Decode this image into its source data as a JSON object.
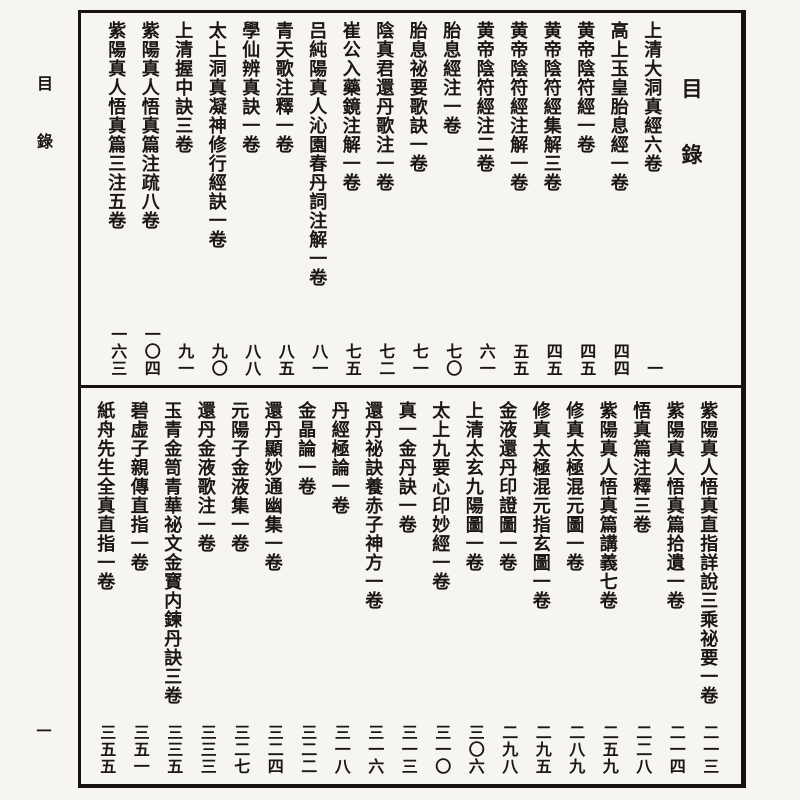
{
  "colors": {
    "ink": "#1b1713",
    "paper": "#f6f5f1",
    "frame": "#161310"
  },
  "page_margin": {
    "label_chars": [
      "目",
      "錄"
    ],
    "folio": "一"
  },
  "toc": {
    "header_chars": [
      "目",
      "錄"
    ],
    "top_entries": [
      {
        "title": "上清大洞真經六卷",
        "page": "一"
      },
      {
        "title": "高上玉皇胎息經一卷",
        "page": "四四"
      },
      {
        "title": "黄帝陰符經一卷",
        "page": "四五"
      },
      {
        "title": "黄帝陰符經集解三卷",
        "page": "四五"
      },
      {
        "title": "黄帝陰符經注解一卷",
        "page": "五五"
      },
      {
        "title": "黄帝陰符經注二卷",
        "page": "六一"
      },
      {
        "title": "胎息經注一卷",
        "page": "七〇"
      },
      {
        "title": "胎息祕要歌訣一卷",
        "page": "七一"
      },
      {
        "title": "陰真君還丹歌注一卷",
        "page": "七二"
      },
      {
        "title": "崔公入藥鏡注解一卷",
        "page": "七五"
      },
      {
        "title": "吕純陽真人沁園春丹詞注解一卷",
        "page": "八一"
      },
      {
        "title": "青天歌注釋一卷",
        "page": "八五"
      },
      {
        "title": "學仙辨真訣一卷",
        "page": "八八"
      },
      {
        "title": "太上洞真凝神修行經訣一卷",
        "page": "九〇"
      },
      {
        "title": "上清握中訣三卷",
        "page": "九一"
      },
      {
        "title": "紫陽真人悟真篇注疏八卷",
        "page": "一〇四"
      },
      {
        "title": "紫陽真人悟真篇三注五卷",
        "page": "一六三"
      }
    ],
    "bottom_entries": [
      {
        "title": "紫陽真人悟真直指詳說三乘祕要一卷",
        "page": "二一三"
      },
      {
        "title": "紫陽真人悟真篇拾遺一卷",
        "page": "二一四"
      },
      {
        "title": "悟真篇注釋三卷",
        "page": "二二八"
      },
      {
        "title": "紫陽真人悟真篇講義七卷",
        "page": "二五九"
      },
      {
        "title": "修真太極混元圖一卷",
        "page": "二八九"
      },
      {
        "title": "修真太極混元指玄圖一卷",
        "page": "二九五"
      },
      {
        "title": "金液還丹印證圖一卷",
        "page": "二九八"
      },
      {
        "title": "上清太玄九陽圖一卷",
        "page": "三〇六"
      },
      {
        "title": "太上九要心印妙經一卷",
        "page": "三一〇"
      },
      {
        "title": "真一金丹訣一卷",
        "page": "三一三"
      },
      {
        "title": "還丹祕訣養赤子神方一卷",
        "page": "三一六"
      },
      {
        "title": "丹經極論一卷",
        "page": "三一八"
      },
      {
        "title": "金晶論一卷",
        "page": "三二二"
      },
      {
        "title": "還丹顯妙通幽集一卷",
        "page": "三二四"
      },
      {
        "title": "元陽子金液集一卷",
        "page": "三二七"
      },
      {
        "title": "還丹金液歌注一卷",
        "page": "三三三"
      },
      {
        "title": "玉青金笥青華祕文金寳内鍊丹訣三卷",
        "page": "三三五"
      },
      {
        "title": "碧虚子親傳直指一卷",
        "page": "三五一"
      },
      {
        "title": "紙舟先生全真直指一卷",
        "page": "三五五"
      }
    ]
  }
}
